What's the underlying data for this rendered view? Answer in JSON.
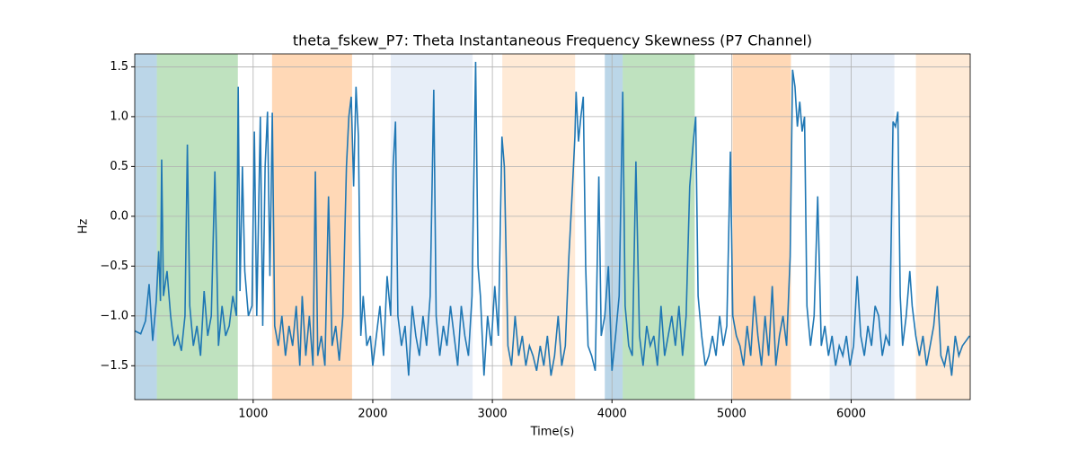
{
  "chart_data": {
    "type": "line",
    "title": "theta_fskew_P7: Theta Instantaneous Frequency Skewness (P7 Channel)",
    "xlabel": "Time(s)",
    "ylabel": "Hz",
    "xlim": [
      10,
      6995
    ],
    "ylim": [
      -1.84,
      1.63
    ],
    "xticks": [
      1000,
      2000,
      3000,
      4000,
      5000,
      6000
    ],
    "yticks": [
      {
        "value": -1.5,
        "label": "−1.5"
      },
      {
        "value": -1.0,
        "label": "−1.0"
      },
      {
        "value": -0.5,
        "label": "−0.5"
      },
      {
        "value": 0.0,
        "label": "0.0"
      },
      {
        "value": 0.5,
        "label": "0.5"
      },
      {
        "value": 1.0,
        "label": "1.0"
      },
      {
        "value": 1.5,
        "label": "1.5"
      }
    ],
    "grid": true,
    "spans": [
      {
        "start": 8,
        "end": 195,
        "color": "#1f77b4",
        "opacity": 0.3
      },
      {
        "start": 195,
        "end": 872,
        "color": "#2ca02c",
        "opacity": 0.3
      },
      {
        "start": 1158,
        "end": 1827,
        "color": "#ff7f0e",
        "opacity": 0.3
      },
      {
        "start": 2150,
        "end": 2835,
        "color": "#aec7e8",
        "opacity": 0.3
      },
      {
        "start": 3083,
        "end": 3692,
        "color": "#ffbb78",
        "opacity": 0.3
      },
      {
        "start": 3940,
        "end": 4090,
        "color": "#1f77b4",
        "opacity": 0.3
      },
      {
        "start": 4090,
        "end": 4692,
        "color": "#2ca02c",
        "opacity": 0.3
      },
      {
        "start": 5008,
        "end": 5496,
        "color": "#ff7f0e",
        "opacity": 0.3
      },
      {
        "start": 5820,
        "end": 6361,
        "color": "#aec7e8",
        "opacity": 0.3
      },
      {
        "start": 6541,
        "end": 7000,
        "color": "#ffbb78",
        "opacity": 0.3
      }
    ],
    "series": [
      {
        "color": "#1f77b4",
        "x": [
          10,
          60,
          100,
          130,
          160,
          190,
          210,
          225,
          235,
          250,
          280,
          310,
          340,
          370,
          400,
          430,
          450,
          470,
          500,
          530,
          560,
          590,
          620,
          650,
          680,
          710,
          740,
          770,
          800,
          830,
          860,
          875,
          890,
          910,
          930,
          960,
          990,
          1010,
          1030,
          1060,
          1080,
          1100,
          1120,
          1140,
          1160,
          1180,
          1210,
          1240,
          1270,
          1300,
          1330,
          1360,
          1390,
          1410,
          1440,
          1470,
          1500,
          1520,
          1540,
          1570,
          1600,
          1630,
          1660,
          1690,
          1720,
          1750,
          1780,
          1800,
          1820,
          1840,
          1860,
          1880,
          1900,
          1920,
          1950,
          1980,
          2000,
          2030,
          2060,
          2090,
          2120,
          2150,
          2170,
          2190,
          2210,
          2240,
          2270,
          2300,
          2330,
          2360,
          2390,
          2420,
          2450,
          2480,
          2510,
          2530,
          2560,
          2590,
          2620,
          2650,
          2680,
          2710,
          2740,
          2770,
          2800,
          2830,
          2860,
          2880,
          2900,
          2930,
          2960,
          2990,
          3020,
          3050,
          3080,
          3100,
          3130,
          3160,
          3190,
          3220,
          3250,
          3280,
          3310,
          3340,
          3370,
          3400,
          3430,
          3460,
          3490,
          3520,
          3550,
          3580,
          3610,
          3640,
          3670,
          3690,
          3700,
          3720,
          3740,
          3760,
          3780,
          3800,
          3830,
          3860,
          3890,
          3910,
          3940,
          3970,
          4000,
          4030,
          4060,
          4090,
          4110,
          4140,
          4170,
          4200,
          4230,
          4260,
          4290,
          4320,
          4350,
          4380,
          4410,
          4440,
          4470,
          4500,
          4530,
          4560,
          4590,
          4620,
          4650,
          4680,
          4700,
          4720,
          4750,
          4780,
          4810,
          4840,
          4870,
          4900,
          4930,
          4960,
          4990,
          5010,
          5040,
          5070,
          5100,
          5130,
          5160,
          5190,
          5220,
          5250,
          5280,
          5310,
          5340,
          5370,
          5400,
          5430,
          5460,
          5490,
          5510,
          5530,
          5550,
          5570,
          5590,
          5610,
          5630,
          5660,
          5690,
          5720,
          5750,
          5780,
          5810,
          5840,
          5870,
          5900,
          5930,
          5960,
          5990,
          6020,
          6050,
          6080,
          6110,
          6140,
          6170,
          6200,
          6230,
          6260,
          6290,
          6320,
          6350,
          6370,
          6390,
          6410,
          6430,
          6460,
          6490,
          6510,
          6540,
          6570,
          6600,
          6630,
          6660,
          6690,
          6720,
          6750,
          6780,
          6810,
          6840,
          6870,
          6900,
          6930,
          6960,
          6990
        ],
        "values": [
          -1.15,
          -1.18,
          -1.05,
          -0.68,
          -1.25,
          -0.85,
          -0.35,
          -0.85,
          0.57,
          -0.8,
          -0.55,
          -1.0,
          -1.3,
          -1.2,
          -1.35,
          -1.0,
          0.72,
          -0.9,
          -1.3,
          -1.1,
          -1.4,
          -0.75,
          -1.2,
          -1.0,
          0.45,
          -1.3,
          -0.9,
          -1.2,
          -1.1,
          -0.8,
          -1.0,
          1.3,
          -0.75,
          0.5,
          -0.55,
          -1.0,
          -0.9,
          0.85,
          -1.0,
          1.0,
          -1.1,
          0.5,
          1.05,
          -0.6,
          1.04,
          -1.1,
          -1.3,
          -1.0,
          -1.4,
          -1.1,
          -1.3,
          -0.9,
          -1.5,
          -0.8,
          -1.4,
          -1.0,
          -1.5,
          0.45,
          -1.4,
          -1.2,
          -1.5,
          0.2,
          -1.3,
          -1.1,
          -1.45,
          -1.0,
          0.5,
          1.0,
          1.2,
          0.3,
          1.3,
          0.8,
          -1.2,
          -0.8,
          -1.3,
          -1.2,
          -1.5,
          -1.2,
          -0.9,
          -1.4,
          -0.6,
          -1.0,
          0.5,
          0.95,
          -1.0,
          -1.3,
          -1.1,
          -1.6,
          -0.9,
          -1.2,
          -1.4,
          -1.0,
          -1.3,
          -0.8,
          1.27,
          -1.0,
          -1.4,
          -1.1,
          -1.3,
          -0.9,
          -1.2,
          -1.5,
          -0.9,
          -1.2,
          -1.4,
          -0.8,
          1.55,
          -0.5,
          -0.8,
          -1.6,
          -1.0,
          -1.3,
          -0.7,
          -1.2,
          0.8,
          0.5,
          -1.3,
          -1.5,
          -1.0,
          -1.4,
          -1.2,
          -1.5,
          -1.3,
          -1.4,
          -1.55,
          -1.3,
          -1.5,
          -1.2,
          -1.6,
          -1.4,
          -1.0,
          -1.5,
          -1.3,
          -0.4,
          0.3,
          0.8,
          1.25,
          0.75,
          1.0,
          1.2,
          -0.5,
          -1.3,
          -1.4,
          -1.55,
          0.4,
          -1.2,
          -1.0,
          -0.5,
          -1.55,
          -1.2,
          -0.8,
          1.25,
          -0.9,
          -1.3,
          -1.4,
          0.55,
          -1.2,
          -1.5,
          -1.1,
          -1.3,
          -1.2,
          -1.5,
          -0.9,
          -1.4,
          -1.2,
          -1.0,
          -1.3,
          -0.9,
          -1.4,
          -1.0,
          0.3,
          0.75,
          1.0,
          -0.8,
          -1.2,
          -1.5,
          -1.4,
          -1.2,
          -1.4,
          -1.0,
          -1.3,
          -1.1,
          0.65,
          -1.0,
          -1.2,
          -1.3,
          -1.5,
          -1.1,
          -1.4,
          -0.8,
          -1.2,
          -1.5,
          -1.0,
          -1.4,
          -0.7,
          -1.5,
          -1.2,
          -1.0,
          -1.3,
          -0.4,
          1.47,
          1.3,
          0.9,
          1.15,
          0.85,
          1.0,
          -0.9,
          -1.3,
          -1.0,
          0.2,
          -1.3,
          -1.1,
          -1.4,
          -1.2,
          -1.5,
          -1.3,
          -1.4,
          -1.2,
          -1.5,
          -1.3,
          -0.6,
          -1.2,
          -1.4,
          -1.1,
          -1.3,
          -0.9,
          -1.0,
          -1.4,
          -1.2,
          -1.3,
          0.95,
          0.9,
          1.05,
          -0.8,
          -1.3,
          -1.0,
          -0.55,
          -0.9,
          -1.2,
          -1.4,
          -1.2,
          -1.5,
          -1.3,
          -1.1,
          -0.7,
          -1.4,
          -1.5,
          -1.3,
          -1.6,
          -1.2,
          -1.4,
          -1.3,
          -1.25,
          -1.2
        ]
      }
    ]
  }
}
